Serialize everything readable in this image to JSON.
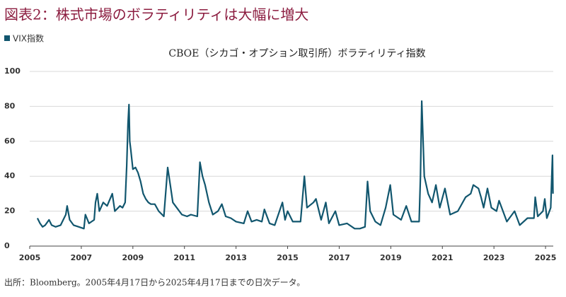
{
  "header": {
    "title": "図表2：株式市場のボラティリティは大幅に増大"
  },
  "chart_data": {
    "type": "line",
    "title": "CBOE（シカゴ・オプション取引所）ボラティリティ指数",
    "series": [
      {
        "name": "VIX指数",
        "color": "#11566e",
        "x": [
          2005.3,
          2005.4,
          2005.5,
          2005.6,
          2005.75,
          2005.85,
          2006.0,
          2006.2,
          2006.4,
          2006.45,
          2006.55,
          2006.7,
          2006.9,
          2007.1,
          2007.16,
          2007.3,
          2007.5,
          2007.55,
          2007.62,
          2007.7,
          2007.85,
          2008.0,
          2008.2,
          2008.3,
          2008.5,
          2008.6,
          2008.7,
          2008.76,
          2008.81,
          2008.85,
          2008.88,
          2008.92,
          2009.0,
          2009.1,
          2009.2,
          2009.3,
          2009.4,
          2009.5,
          2009.6,
          2009.7,
          2009.85,
          2010.0,
          2010.2,
          2010.35,
          2010.45,
          2010.55,
          2010.7,
          2010.9,
          2011.1,
          2011.25,
          2011.5,
          2011.6,
          2011.7,
          2011.8,
          2011.95,
          2012.1,
          2012.3,
          2012.45,
          2012.6,
          2012.8,
          2013.0,
          2013.3,
          2013.45,
          2013.6,
          2013.8,
          2014.0,
          2014.1,
          2014.3,
          2014.5,
          2014.8,
          2014.9,
          2015.0,
          2015.2,
          2015.5,
          2015.65,
          2015.75,
          2016.0,
          2016.1,
          2016.3,
          2016.48,
          2016.6,
          2016.85,
          2017.0,
          2017.3,
          2017.6,
          2017.8,
          2018.0,
          2018.1,
          2018.2,
          2018.4,
          2018.6,
          2018.8,
          2018.98,
          2019.1,
          2019.4,
          2019.6,
          2019.8,
          2020.1,
          2020.15,
          2020.2,
          2020.3,
          2020.45,
          2020.6,
          2020.75,
          2020.9,
          2021.1,
          2021.3,
          2021.6,
          2021.9,
          2022.1,
          2022.2,
          2022.4,
          2022.5,
          2022.6,
          2022.75,
          2022.9,
          2023.1,
          2023.2,
          2023.5,
          2023.8,
          2024.0,
          2024.3,
          2024.55,
          2024.6,
          2024.7,
          2024.9,
          2024.97,
          2025.05,
          2025.2,
          2025.27,
          2025.29
        ],
        "values": [
          16,
          13,
          11,
          12,
          15,
          12,
          11,
          12,
          18,
          23,
          15,
          12,
          11,
          10,
          18,
          13,
          15,
          25,
          30,
          20,
          25,
          23,
          30,
          20,
          23,
          22,
          25,
          46,
          70,
          81,
          60,
          55,
          44,
          45,
          42,
          37,
          30,
          27,
          25,
          24,
          24,
          20,
          17,
          45,
          35,
          25,
          22,
          18,
          17,
          18,
          17,
          48,
          40,
          35,
          25,
          18,
          20,
          24,
          17,
          16,
          14,
          13,
          20,
          14,
          15,
          14,
          21,
          13,
          12,
          25,
          15,
          20,
          14,
          14,
          40,
          22,
          25,
          27,
          15,
          25,
          13,
          20,
          12,
          13,
          10,
          10,
          11,
          37,
          20,
          14,
          12,
          22,
          35,
          18,
          15,
          23,
          14,
          14,
          40,
          83,
          40,
          30,
          25,
          35,
          22,
          33,
          18,
          20,
          28,
          30,
          35,
          33,
          28,
          22,
          33,
          22,
          20,
          26,
          14,
          20,
          12,
          16,
          16,
          28,
          17,
          20,
          27,
          16,
          22,
          52,
          30
        ]
      }
    ],
    "xlim": [
      2005,
      2025.3
    ],
    "xticks": [
      2005,
      2007,
      2009,
      2011,
      2013,
      2015,
      2017,
      2019,
      2021,
      2023,
      2025
    ],
    "ylim": [
      0,
      100
    ],
    "yticks": [
      0,
      20,
      40,
      60,
      80,
      100
    ],
    "grid": true,
    "legend": "top-left"
  },
  "footer": {
    "source": "出所：Bloomberg。2005年4月17日から2025年4月17日までの日次データ。"
  }
}
